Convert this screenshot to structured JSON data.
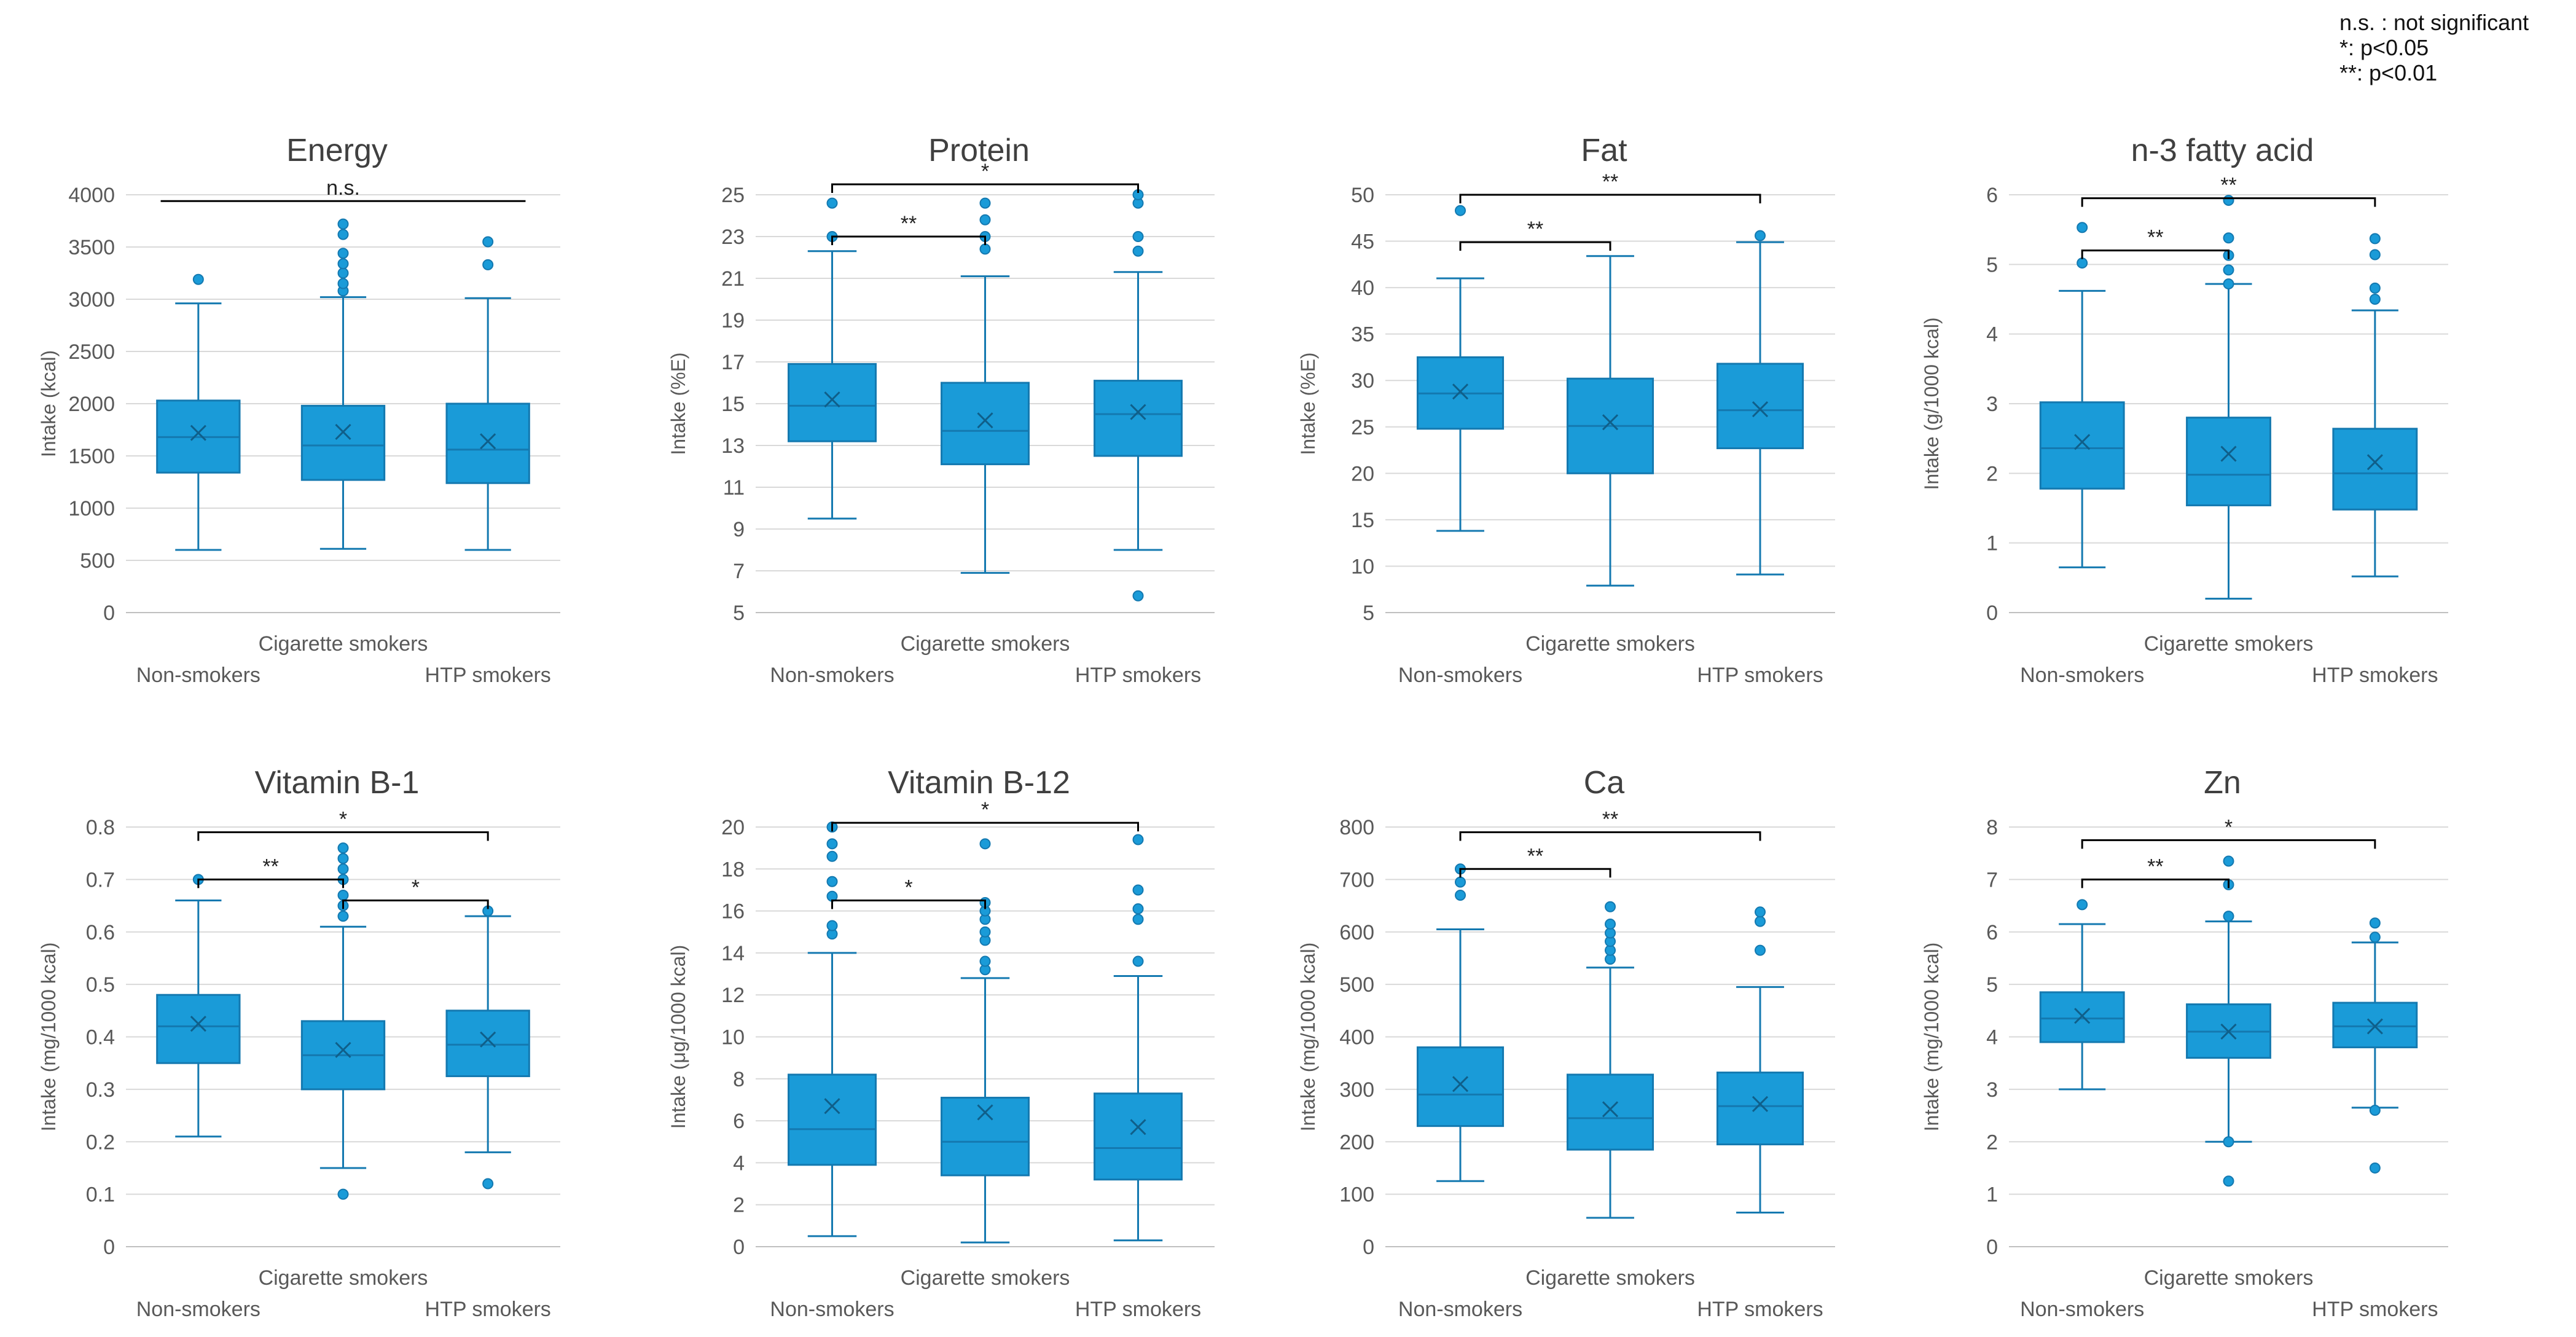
{
  "legend": {
    "ns": "n.s. : not significant",
    "p05": "*: p<0.05",
    "p01": "**: p<0.01"
  },
  "colors": {
    "box": "#1a9bd8",
    "box_stroke": "#1479b0",
    "grid": "#d9d9d9",
    "axis": "#bfbfbf",
    "text": "#595959",
    "bracket": "#000000"
  },
  "chart_data": [
    {
      "type": "box",
      "title": "Energy",
      "ylabel": "Intake (kcal)",
      "xlabel": "Cigarette smokers",
      "categories": [
        "Non-smokers",
        "Cigarette smokers",
        "HTP smokers"
      ],
      "ylim": [
        0,
        4000
      ],
      "ystep": 500,
      "yticks": [
        "0",
        "500",
        "1000",
        "1500",
        "2000",
        "2500",
        "3000",
        "3500",
        "4000"
      ],
      "boxes": [
        {
          "whisker_low": 600,
          "q1": 1340,
          "median": 1680,
          "q3": 2030,
          "whisker_high": 2960,
          "mean": 1720,
          "outliers": [
            3190
          ]
        },
        {
          "whisker_low": 610,
          "q1": 1270,
          "median": 1600,
          "q3": 1980,
          "whisker_high": 3020,
          "mean": 1730,
          "outliers": [
            3080,
            3150,
            3250,
            3340,
            3440,
            3620,
            3720
          ]
        },
        {
          "whisker_low": 600,
          "q1": 1240,
          "median": 1560,
          "q3": 2000,
          "whisker_high": 3010,
          "mean": 1640,
          "outliers": [
            3330,
            3550
          ]
        }
      ],
      "brackets": [
        {
          "from": 0,
          "to": 2,
          "y": 3940,
          "label": "n.s."
        }
      ]
    },
    {
      "type": "box",
      "title": "Protein",
      "ylabel": "Intake (%E)",
      "xlabel": "Cigarette smokers",
      "categories": [
        "Non-smokers",
        "Cigarette smokers",
        "HTP smokers"
      ],
      "ylim": [
        5,
        25
      ],
      "ystep": 2,
      "yticks": [
        "5",
        "7",
        "9",
        "11",
        "13",
        "15",
        "17",
        "19",
        "21",
        "23",
        "25"
      ],
      "boxes": [
        {
          "whisker_low": 9.5,
          "q1": 13.2,
          "median": 14.9,
          "q3": 16.9,
          "whisker_high": 22.3,
          "mean": 15.2,
          "outliers": [
            23.0,
            24.6
          ]
        },
        {
          "whisker_low": 6.9,
          "q1": 12.1,
          "median": 13.7,
          "q3": 16.0,
          "whisker_high": 21.1,
          "mean": 14.2,
          "outliers": [
            22.4,
            23.0,
            23.8,
            24.6
          ]
        },
        {
          "whisker_low": 8.0,
          "q1": 12.5,
          "median": 14.5,
          "q3": 16.1,
          "whisker_high": 21.3,
          "mean": 14.6,
          "outliers": [
            5.8,
            22.3,
            23.0,
            24.6,
            25.0
          ]
        }
      ],
      "brackets": [
        {
          "from": 0,
          "to": 1,
          "y": 23.0,
          "label": "**"
        },
        {
          "from": 0,
          "to": 2,
          "y": 25.5,
          "label": "*"
        }
      ]
    },
    {
      "type": "box",
      "title": "Fat",
      "ylabel": "Intake (%E)",
      "xlabel": "Cigarette smokers",
      "categories": [
        "Non-smokers",
        "Cigarette smokers",
        "HTP smokers"
      ],
      "ylim": [
        5,
        50
      ],
      "ystep": 5,
      "yticks": [
        "5",
        "10",
        "15",
        "20",
        "25",
        "30",
        "35",
        "40",
        "45",
        "50"
      ],
      "boxes": [
        {
          "whisker_low": 13.8,
          "q1": 24.8,
          "median": 28.6,
          "q3": 32.5,
          "whisker_high": 41.0,
          "mean": 28.8,
          "outliers": [
            48.3
          ]
        },
        {
          "whisker_low": 7.9,
          "q1": 20.0,
          "median": 25.1,
          "q3": 30.2,
          "whisker_high": 43.4,
          "mean": 25.5,
          "outliers": []
        },
        {
          "whisker_low": 9.1,
          "q1": 22.7,
          "median": 26.8,
          "q3": 31.8,
          "whisker_high": 44.9,
          "mean": 26.9,
          "outliers": [
            45.6
          ]
        }
      ],
      "brackets": [
        {
          "from": 0,
          "to": 1,
          "y": 44.9,
          "label": "**"
        },
        {
          "from": 0,
          "to": 2,
          "y": 50.0,
          "label": "**"
        }
      ]
    },
    {
      "type": "box",
      "title": "n-3 fatty acid",
      "ylabel": "Intake (g/1000 kcal)",
      "xlabel": "Cigarette smokers",
      "categories": [
        "Non-smokers",
        "Cigarette smokers",
        "HTP smokers"
      ],
      "ylim": [
        0,
        6
      ],
      "ystep": 1,
      "yticks": [
        "0",
        "1",
        "2",
        "3",
        "4",
        "5",
        "6"
      ],
      "boxes": [
        {
          "whisker_low": 0.65,
          "q1": 1.78,
          "median": 2.36,
          "q3": 3.02,
          "whisker_high": 4.62,
          "mean": 2.45,
          "outliers": [
            5.02,
            5.53
          ]
        },
        {
          "whisker_low": 0.2,
          "q1": 1.54,
          "median": 1.98,
          "q3": 2.8,
          "whisker_high": 4.72,
          "mean": 2.28,
          "outliers": [
            4.72,
            4.92,
            5.13,
            5.38,
            5.92
          ]
        },
        {
          "whisker_low": 0.52,
          "q1": 1.48,
          "median": 2.0,
          "q3": 2.64,
          "whisker_high": 4.34,
          "mean": 2.16,
          "outliers": [
            4.5,
            4.66,
            5.14,
            5.37
          ]
        }
      ],
      "brackets": [
        {
          "from": 0,
          "to": 1,
          "y": 5.2,
          "label": "**"
        },
        {
          "from": 0,
          "to": 2,
          "y": 5.95,
          "label": "**"
        }
      ]
    },
    {
      "type": "box",
      "title": "Vitamin B-1",
      "ylabel": "Intake (mg/1000 kcal)",
      "xlabel": "Cigarette smokers",
      "categories": [
        "Non-smokers",
        "Cigarette smokers",
        "HTP smokers"
      ],
      "ylim": [
        0,
        0.8
      ],
      "ystep": 0.1,
      "yticks": [
        "0",
        "0.1",
        "0.2",
        "0.3",
        "0.4",
        "0.5",
        "0.6",
        "0.7",
        "0.8"
      ],
      "boxes": [
        {
          "whisker_low": 0.21,
          "q1": 0.35,
          "median": 0.42,
          "q3": 0.48,
          "whisker_high": 0.66,
          "mean": 0.425,
          "outliers": [
            0.7
          ]
        },
        {
          "whisker_low": 0.15,
          "q1": 0.3,
          "median": 0.365,
          "q3": 0.43,
          "whisker_high": 0.61,
          "mean": 0.375,
          "outliers": [
            0.1,
            0.63,
            0.65,
            0.67,
            0.7,
            0.72,
            0.74,
            0.76
          ]
        },
        {
          "whisker_low": 0.18,
          "q1": 0.325,
          "median": 0.385,
          "q3": 0.45,
          "whisker_high": 0.63,
          "mean": 0.395,
          "outliers": [
            0.12,
            0.64
          ]
        }
      ],
      "brackets": [
        {
          "from": 0,
          "to": 1,
          "y": 0.7,
          "label": "**"
        },
        {
          "from": 1,
          "to": 2,
          "y": 0.66,
          "label": "*"
        },
        {
          "from": 0,
          "to": 2,
          "y": 0.79,
          "label": "*"
        }
      ]
    },
    {
      "type": "box",
      "title": "Vitamin B-12",
      "ylabel": "Intake (μg/1000 kcal)",
      "xlabel": "Cigarette smokers",
      "categories": [
        "Non-smokers",
        "Cigarette smokers",
        "HTP smokers"
      ],
      "ylim": [
        0,
        20
      ],
      "ystep": 2,
      "yticks": [
        "0",
        "2",
        "4",
        "6",
        "8",
        "10",
        "12",
        "14",
        "16",
        "18",
        "20"
      ],
      "boxes": [
        {
          "whisker_low": 0.5,
          "q1": 3.9,
          "median": 5.6,
          "q3": 8.2,
          "whisker_high": 14.0,
          "mean": 6.7,
          "outliers": [
            14.9,
            15.3,
            16.7,
            17.4,
            18.6,
            19.2,
            20.0
          ]
        },
        {
          "whisker_low": 0.2,
          "q1": 3.4,
          "median": 5.0,
          "q3": 7.1,
          "whisker_high": 12.8,
          "mean": 6.4,
          "outliers": [
            13.2,
            13.6,
            14.6,
            15.0,
            15.6,
            16.0,
            16.4,
            19.2
          ]
        },
        {
          "whisker_low": 0.3,
          "q1": 3.2,
          "median": 4.7,
          "q3": 7.3,
          "whisker_high": 12.9,
          "mean": 5.7,
          "outliers": [
            13.6,
            15.6,
            16.1,
            17.0,
            19.4
          ]
        }
      ],
      "brackets": [
        {
          "from": 0,
          "to": 1,
          "y": 16.5,
          "label": "*"
        },
        {
          "from": 0,
          "to": 2,
          "y": 20.2,
          "label": "*"
        }
      ]
    },
    {
      "type": "box",
      "title": "Ca",
      "ylabel": "Intake (mg/1000 kcal)",
      "xlabel": "Cigarette smokers",
      "categories": [
        "Non-smokers",
        "Cigarette smokers",
        "HTP smokers"
      ],
      "ylim": [
        0,
        800
      ],
      "ystep": 100,
      "yticks": [
        "0",
        "100",
        "200",
        "300",
        "400",
        "500",
        "600",
        "700",
        "800"
      ],
      "boxes": [
        {
          "whisker_low": 125,
          "q1": 230,
          "median": 290,
          "q3": 380,
          "whisker_high": 605,
          "mean": 310,
          "outliers": [
            670,
            695,
            720
          ]
        },
        {
          "whisker_low": 55,
          "q1": 185,
          "median": 245,
          "q3": 328,
          "whisker_high": 532,
          "mean": 262,
          "outliers": [
            548,
            565,
            582,
            598,
            615,
            648
          ]
        },
        {
          "whisker_low": 65,
          "q1": 195,
          "median": 268,
          "q3": 332,
          "whisker_high": 495,
          "mean": 272,
          "outliers": [
            565,
            620,
            638
          ]
        }
      ],
      "brackets": [
        {
          "from": 0,
          "to": 1,
          "y": 720,
          "label": "**"
        },
        {
          "from": 0,
          "to": 2,
          "y": 790,
          "label": "**"
        }
      ]
    },
    {
      "type": "box",
      "title": "Zn",
      "ylabel": "Intake (mg/1000 kcal)",
      "xlabel": "Cigarette smokers",
      "categories": [
        "Non-smokers",
        "Cigarette smokers",
        "HTP smokers"
      ],
      "ylim": [
        0,
        8
      ],
      "ystep": 1,
      "yticks": [
        "0",
        "1",
        "2",
        "3",
        "4",
        "5",
        "6",
        "7",
        "8"
      ],
      "boxes": [
        {
          "whisker_low": 3.0,
          "q1": 3.9,
          "median": 4.35,
          "q3": 4.85,
          "whisker_high": 6.15,
          "mean": 4.4,
          "outliers": [
            6.52
          ]
        },
        {
          "whisker_low": 2.0,
          "q1": 3.6,
          "median": 4.1,
          "q3": 4.62,
          "whisker_high": 6.2,
          "mean": 4.1,
          "outliers": [
            1.25,
            2.0,
            6.3,
            6.9,
            7.35
          ]
        },
        {
          "whisker_low": 2.65,
          "q1": 3.8,
          "median": 4.2,
          "q3": 4.65,
          "whisker_high": 5.8,
          "mean": 4.2,
          "outliers": [
            1.5,
            2.6,
            5.9,
            6.17
          ]
        }
      ],
      "brackets": [
        {
          "from": 0,
          "to": 1,
          "y": 7.0,
          "label": "**"
        },
        {
          "from": 0,
          "to": 2,
          "y": 7.75,
          "label": "*"
        }
      ]
    }
  ]
}
